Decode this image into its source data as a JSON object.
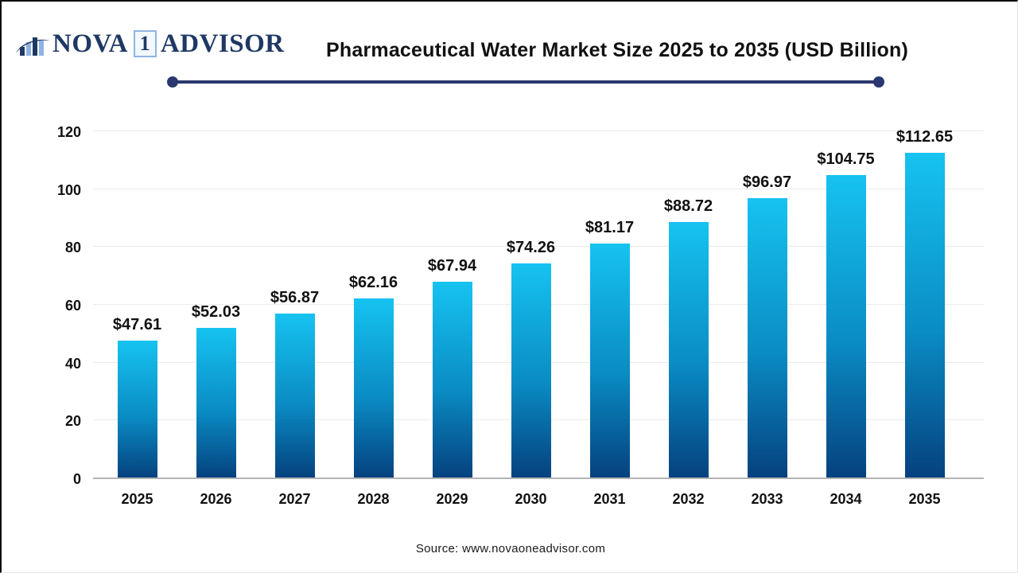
{
  "header": {
    "logo": {
      "nova": "NOVA",
      "one": "1",
      "advisor": "ADVISOR",
      "icon": "bar-chart-swoosh-icon"
    },
    "title": "Pharmaceutical Water Market Size 2025 to 2035 (USD Billion)"
  },
  "chart_data": {
    "type": "bar",
    "title": "Pharmaceutical Water Market Size 2025 to 2035 (USD Billion)",
    "categories": [
      "2025",
      "2026",
      "2027",
      "2028",
      "2029",
      "2030",
      "2031",
      "2032",
      "2033",
      "2034",
      "2035"
    ],
    "values": [
      47.61,
      52.03,
      56.87,
      62.16,
      67.94,
      74.26,
      81.17,
      88.72,
      96.97,
      104.75,
      112.65
    ],
    "value_labels": [
      "$47.61",
      "$52.03",
      "$56.87",
      "$62.16",
      "$67.94",
      "$74.26",
      "$81.17",
      "$88.72",
      "$96.97",
      "$104.75",
      "$112.65"
    ],
    "unit": "USD Billion",
    "xlabel": "",
    "ylabel": "",
    "ylim": [
      0,
      120
    ],
    "yticks": [
      0,
      20,
      40,
      60,
      80,
      100,
      120
    ],
    "grid": true,
    "legend": "none",
    "bar_color_top": "#16c3f0",
    "bar_color_mid": "#0a8cc4",
    "bar_color_bottom": "#05417e"
  },
  "footer": {
    "source": "Source: www.novaoneadvisor.com"
  },
  "colors": {
    "divider": "#2b3770",
    "logo_navy": "#1f3864",
    "logo_light_blue": "#8eb4e3",
    "gridline": "#ebebeb",
    "baseline": "#b3b3b3",
    "text": "#111111"
  }
}
